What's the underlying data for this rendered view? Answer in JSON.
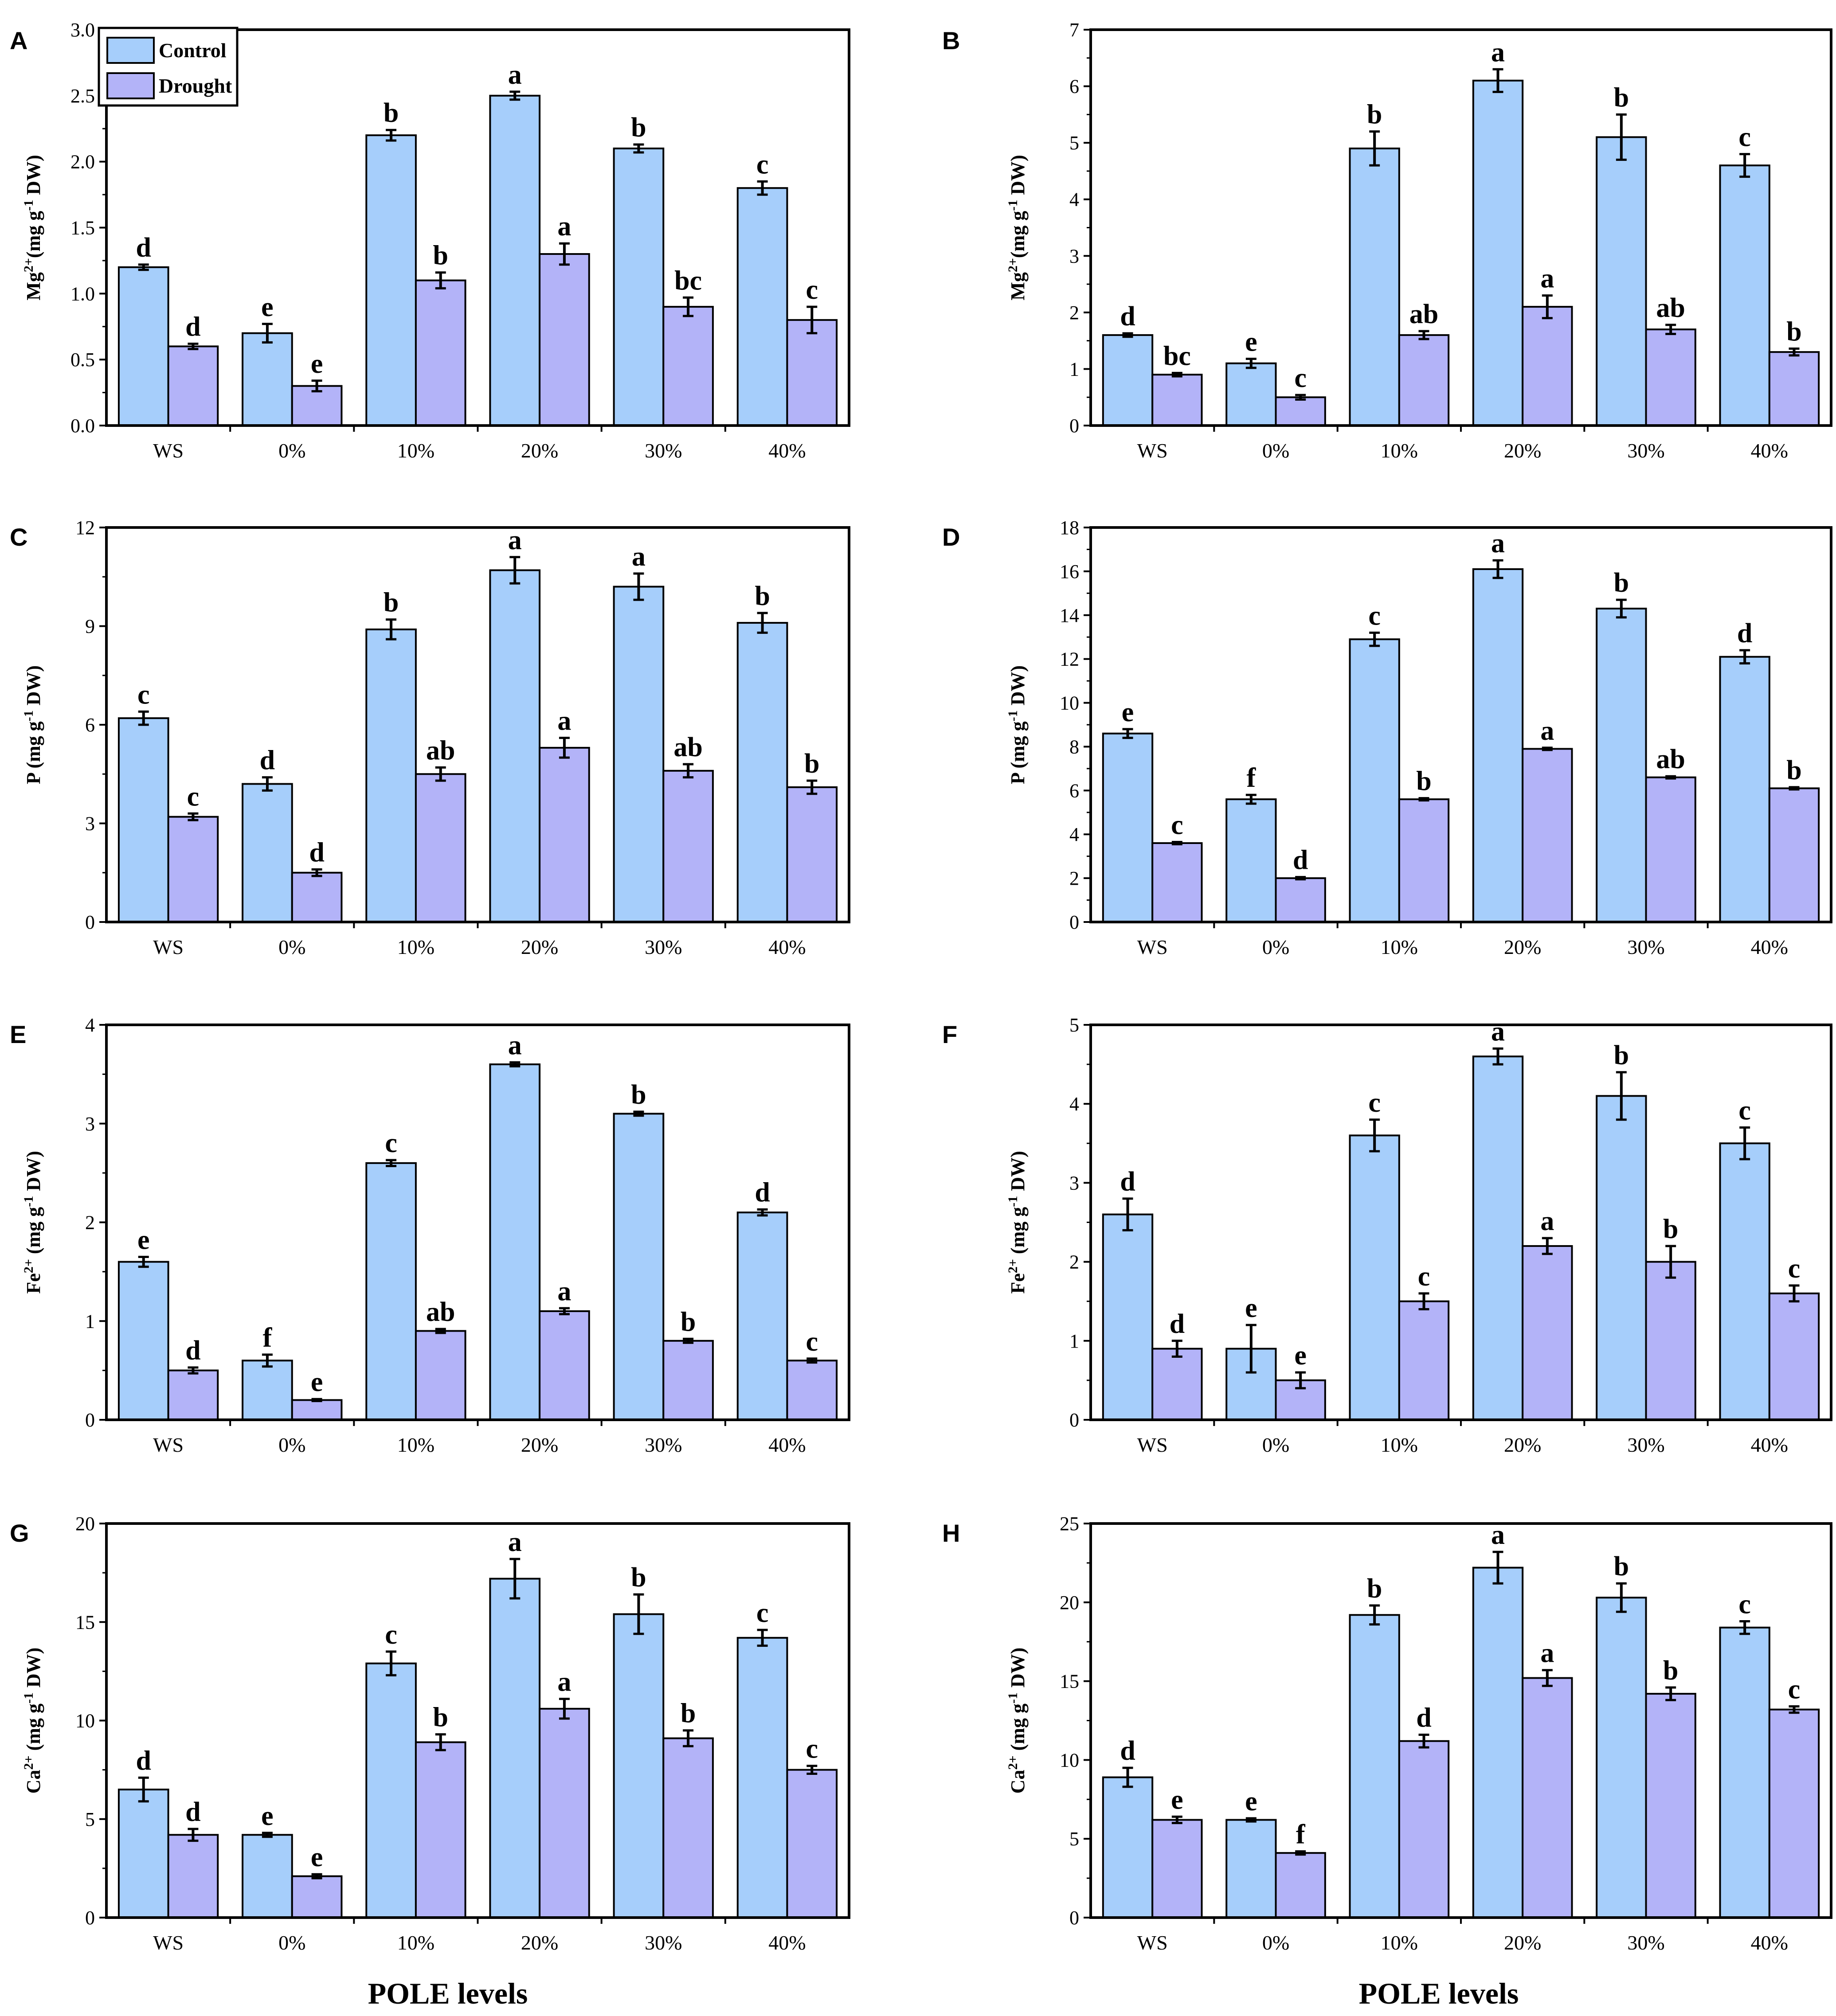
{
  "colors": {
    "control": "#A6CEFB",
    "drought": "#B3B3F8",
    "axis": "#000000"
  },
  "legend": {
    "control": "Control",
    "drought": "Drought"
  },
  "x_axis_title": "POLE levels",
  "chart_data": [
    {
      "panel": "A",
      "type": "bar",
      "ylabel": {
        "species": "Mg",
        "charge": "2+",
        "unit": "(mg g",
        "exp": "-1",
        "tail": " DW)"
      },
      "ylim": [
        0,
        3.0
      ],
      "yticks": [
        "0.0",
        "0.5",
        "1.0",
        "1.5",
        "2.0",
        "2.5",
        "3.0"
      ],
      "categories": [
        "WS",
        "0%",
        "10%",
        "20%",
        "30%",
        "40%"
      ],
      "series": [
        {
          "name": "Control",
          "values": [
            1.2,
            0.7,
            2.2,
            2.5,
            2.1,
            1.8
          ],
          "errors": [
            0.02,
            0.07,
            0.04,
            0.03,
            0.03,
            0.05
          ],
          "letters": [
            "d",
            "e",
            "b",
            "a",
            "b",
            "c"
          ]
        },
        {
          "name": "Drought",
          "values": [
            0.6,
            0.3,
            1.1,
            1.3,
            0.9,
            0.8
          ],
          "errors": [
            0.02,
            0.04,
            0.06,
            0.08,
            0.07,
            0.1
          ],
          "letters": [
            "d",
            "e",
            "b",
            "a",
            "bc",
            "c"
          ]
        }
      ]
    },
    {
      "panel": "B",
      "type": "bar",
      "ylabel": {
        "species": "Mg",
        "charge": "2+",
        "unit": "(mg g",
        "exp": "-1",
        "tail": " DW)"
      },
      "ylim": [
        0,
        7
      ],
      "yticks": [
        "0",
        "1",
        "2",
        "3",
        "4",
        "5",
        "6",
        "7"
      ],
      "categories": [
        "WS",
        "0%",
        "10%",
        "20%",
        "30%",
        "40%"
      ],
      "series": [
        {
          "name": "Control",
          "values": [
            1.6,
            1.1,
            4.9,
            6.1,
            5.1,
            4.6
          ],
          "errors": [
            0.03,
            0.08,
            0.3,
            0.2,
            0.4,
            0.2
          ],
          "letters": [
            "d",
            "e",
            "b",
            "a",
            "b",
            "c"
          ]
        },
        {
          "name": "Drought",
          "values": [
            0.9,
            0.5,
            1.6,
            2.1,
            1.7,
            1.3
          ],
          "errors": [
            0.03,
            0.04,
            0.07,
            0.2,
            0.08,
            0.06
          ],
          "letters": [
            "bc",
            "c",
            "ab",
            "a",
            "ab",
            "b"
          ]
        }
      ]
    },
    {
      "panel": "C",
      "type": "bar",
      "ylabel": {
        "species": "P",
        "charge": "",
        "unit": " (mg g",
        "exp": "-1",
        "tail": " DW)"
      },
      "ylim": [
        0,
        12
      ],
      "yticks": [
        "0",
        "3",
        "6",
        "9",
        "12"
      ],
      "categories": [
        "WS",
        "0%",
        "10%",
        "20%",
        "30%",
        "40%"
      ],
      "series": [
        {
          "name": "Control",
          "values": [
            6.2,
            4.2,
            8.9,
            10.7,
            10.2,
            9.1
          ],
          "errors": [
            0.2,
            0.2,
            0.3,
            0.4,
            0.4,
            0.3
          ],
          "letters": [
            "c",
            "d",
            "b",
            "a",
            "a",
            "b"
          ]
        },
        {
          "name": "Drought",
          "values": [
            3.2,
            1.5,
            4.5,
            5.3,
            4.6,
            4.1
          ],
          "errors": [
            0.1,
            0.1,
            0.2,
            0.3,
            0.2,
            0.2
          ],
          "letters": [
            "c",
            "d",
            "ab",
            "a",
            "ab",
            "b"
          ]
        }
      ]
    },
    {
      "panel": "D",
      "type": "bar",
      "ylabel": {
        "species": "P",
        "charge": "",
        "unit": " (mg g",
        "exp": "-1",
        "tail": " DW)"
      },
      "ylim": [
        0,
        18
      ],
      "yticks": [
        "0",
        "2",
        "4",
        "6",
        "8",
        "10",
        "12",
        "14",
        "16",
        "18"
      ],
      "categories": [
        "WS",
        "0%",
        "10%",
        "20%",
        "30%",
        "40%"
      ],
      "series": [
        {
          "name": "Control",
          "values": [
            8.6,
            5.6,
            12.9,
            16.1,
            14.3,
            12.1
          ],
          "errors": [
            0.2,
            0.2,
            0.3,
            0.4,
            0.4,
            0.3
          ],
          "letters": [
            "e",
            "f",
            "c",
            "a",
            "b",
            "d"
          ]
        },
        {
          "name": "Drought",
          "values": [
            3.6,
            2.0,
            5.6,
            7.9,
            6.6,
            6.1
          ],
          "errors": [
            0.05,
            0.05,
            0.05,
            0.05,
            0.05,
            0.05
          ],
          "letters": [
            "c",
            "d",
            "b",
            "a",
            "ab",
            "b"
          ]
        }
      ]
    },
    {
      "panel": "E",
      "type": "bar",
      "ylabel": {
        "species": "Fe",
        "charge": "2+",
        "unit": " (mg g",
        "exp": "-1",
        "tail": " DW)"
      },
      "ylim": [
        0,
        4
      ],
      "yticks": [
        "0",
        "1",
        "2",
        "3",
        "4"
      ],
      "categories": [
        "WS",
        "0%",
        "10%",
        "20%",
        "30%",
        "40%"
      ],
      "series": [
        {
          "name": "Control",
          "values": [
            1.6,
            0.6,
            2.6,
            3.6,
            3.1,
            2.1
          ],
          "errors": [
            0.05,
            0.06,
            0.03,
            0.02,
            0.02,
            0.03
          ],
          "letters": [
            "e",
            "f",
            "c",
            "a",
            "b",
            "d"
          ]
        },
        {
          "name": "Drought",
          "values": [
            0.5,
            0.2,
            0.9,
            1.1,
            0.8,
            0.6
          ],
          "errors": [
            0.03,
            0.01,
            0.02,
            0.03,
            0.02,
            0.02
          ],
          "letters": [
            "d",
            "e",
            "ab",
            "a",
            "b",
            "c"
          ]
        }
      ]
    },
    {
      "panel": "F",
      "type": "bar",
      "ylabel": {
        "species": "Fe",
        "charge": "2+",
        "unit": " (mg g",
        "exp": "-1",
        "tail": " DW)"
      },
      "ylim": [
        0,
        5
      ],
      "yticks": [
        "0",
        "1",
        "2",
        "3",
        "4",
        "5"
      ],
      "categories": [
        "WS",
        "0%",
        "10%",
        "20%",
        "30%",
        "40%"
      ],
      "series": [
        {
          "name": "Control",
          "values": [
            2.6,
            0.9,
            3.6,
            4.6,
            4.1,
            3.5
          ],
          "errors": [
            0.2,
            0.3,
            0.2,
            0.1,
            0.3,
            0.2
          ],
          "letters": [
            "d",
            "e",
            "c",
            "a",
            "b",
            "c"
          ]
        },
        {
          "name": "Drought",
          "values": [
            0.9,
            0.5,
            1.5,
            2.2,
            2.0,
            1.6
          ],
          "errors": [
            0.1,
            0.1,
            0.1,
            0.1,
            0.2,
            0.1
          ],
          "letters": [
            "d",
            "e",
            "c",
            "a",
            "b",
            "c"
          ]
        }
      ]
    },
    {
      "panel": "G",
      "type": "bar",
      "ylabel": {
        "species": "Ca",
        "charge": "2+",
        "unit": " (mg g",
        "exp": "-1",
        "tail": " DW)"
      },
      "ylim": [
        0,
        20
      ],
      "yticks": [
        "0",
        "5",
        "10",
        "15",
        "20"
      ],
      "categories": [
        "WS",
        "0%",
        "10%",
        "20%",
        "30%",
        "40%"
      ],
      "series": [
        {
          "name": "Control",
          "values": [
            6.5,
            4.2,
            12.9,
            17.2,
            15.4,
            14.2
          ],
          "errors": [
            0.6,
            0.1,
            0.6,
            1.0,
            1.0,
            0.4
          ],
          "letters": [
            "d",
            "e",
            "c",
            "a",
            "b",
            "c"
          ]
        },
        {
          "name": "Drought",
          "values": [
            4.2,
            2.1,
            8.9,
            10.6,
            9.1,
            7.5
          ],
          "errors": [
            0.3,
            0.1,
            0.4,
            0.5,
            0.4,
            0.2
          ],
          "letters": [
            "d",
            "e",
            "b",
            "a",
            "b",
            "c"
          ]
        }
      ]
    },
    {
      "panel": "H",
      "type": "bar",
      "ylabel": {
        "species": "Ca",
        "charge": "2+",
        "unit": " (mg g",
        "exp": "-1",
        "tail": " DW)"
      },
      "ylim": [
        0,
        25
      ],
      "yticks": [
        "0",
        "5",
        "10",
        "15",
        "20",
        "25"
      ],
      "categories": [
        "WS",
        "0%",
        "10%",
        "20%",
        "30%",
        "40%"
      ],
      "series": [
        {
          "name": "Control",
          "values": [
            8.9,
            6.2,
            19.2,
            22.2,
            20.3,
            18.4
          ],
          "errors": [
            0.6,
            0.1,
            0.6,
            1.0,
            0.9,
            0.4
          ],
          "letters": [
            "d",
            "e",
            "b",
            "a",
            "b",
            "c"
          ]
        },
        {
          "name": "Drought",
          "values": [
            6.2,
            4.1,
            11.2,
            15.2,
            14.2,
            13.2
          ],
          "errors": [
            0.2,
            0.1,
            0.4,
            0.5,
            0.4,
            0.2
          ],
          "letters": [
            "e",
            "f",
            "d",
            "a",
            "b",
            "c"
          ]
        }
      ]
    }
  ]
}
